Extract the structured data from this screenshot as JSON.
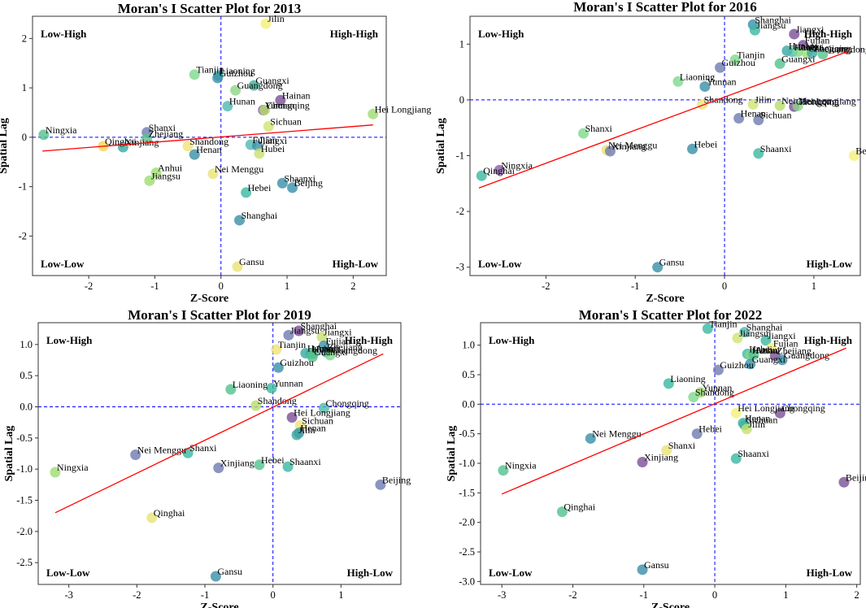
{
  "colors": {
    "refline": "#0000ff",
    "regression": "#ff0000"
  },
  "chart_data": [
    {
      "type": "scatter",
      "title": "Moran's I Scatter Plot for 2013",
      "xlabel": "Z-Score",
      "ylabel": "Spatial Lag",
      "xlim": [
        -2.85,
        2.5
      ],
      "ylim": [
        -2.8,
        2.45
      ],
      "xticks": [
        "-2",
        "-1",
        "0",
        "1",
        "2"
      ],
      "xtick_values": [
        -2,
        -1,
        0,
        1,
        2
      ],
      "yticks": [
        "-2",
        "-1",
        "0",
        "1",
        "2"
      ],
      "ytick_values": [
        -2,
        -1,
        0,
        1,
        2
      ],
      "quadrants": {
        "top_left": "Low-High",
        "top_right": "High-High",
        "bottom_left": "Low-Low",
        "bottom_right": "High-Low"
      },
      "regression": {
        "x": [
          -2.7,
          2.3
        ],
        "y": [
          -0.28,
          0.25
        ]
      },
      "points": [
        {
          "label": "Jilin",
          "x": 0.68,
          "y": 2.3,
          "color": "#f4f07a"
        },
        {
          "label": "Tianjin",
          "x": -0.4,
          "y": 1.27,
          "color": "#7ed88c"
        },
        {
          "label": "Liaoning",
          "x": -0.04,
          "y": 1.25,
          "color": "#3ab8a0"
        },
        {
          "label": "Guizhou",
          "x": -0.05,
          "y": 1.2,
          "color": "#3a8ea8"
        },
        {
          "label": "Guangxi",
          "x": 0.5,
          "y": 1.05,
          "color": "#3bb29a"
        },
        {
          "label": "Guangdong",
          "x": 0.22,
          "y": 0.95,
          "color": "#8fd488"
        },
        {
          "label": "Hainan",
          "x": 0.9,
          "y": 0.75,
          "color": "#7a4f96"
        },
        {
          "label": "Hunan",
          "x": 0.1,
          "y": 0.63,
          "color": "#50b8b0"
        },
        {
          "label": "Yunnan",
          "x": 0.64,
          "y": 0.55,
          "color": "#7e58a0"
        },
        {
          "label": "Chongqing",
          "x": 0.66,
          "y": 0.55,
          "color": "#b6dc6a"
        },
        {
          "label": "Hei Longjiang",
          "x": 2.3,
          "y": 0.47,
          "color": "#9edc72"
        },
        {
          "label": "Sichuan",
          "x": 0.72,
          "y": 0.22,
          "color": "#d0e470"
        },
        {
          "label": "Ningxia",
          "x": -2.68,
          "y": 0.05,
          "color": "#52c28c"
        },
        {
          "label": "Shanxi",
          "x": -1.12,
          "y": 0.1,
          "color": "#6f7bb0"
        },
        {
          "label": "Zhejiang",
          "x": -1.12,
          "y": -0.03,
          "color": "#5ac08e"
        },
        {
          "label": "Qinghai",
          "x": -1.78,
          "y": -0.18,
          "color": "#f4d650"
        },
        {
          "label": "Xinjiang",
          "x": -1.48,
          "y": -0.2,
          "color": "#3aa8a0"
        },
        {
          "label": "Shandong",
          "x": -0.5,
          "y": -0.18,
          "color": "#f0e278"
        },
        {
          "label": "Fujian",
          "x": 0.45,
          "y": -0.15,
          "color": "#50b8b0"
        },
        {
          "label": "Jiangxi",
          "x": 0.55,
          "y": -0.17,
          "color": "#3a8ea8"
        },
        {
          "label": "Henan",
          "x": -0.4,
          "y": -0.35,
          "color": "#3a8ea8"
        },
        {
          "label": "Hubei",
          "x": 0.58,
          "y": -0.33,
          "color": "#c8e070"
        },
        {
          "label": "Anhui",
          "x": -0.98,
          "y": -0.72,
          "color": "#9edc72"
        },
        {
          "label": "Jiangsu",
          "x": -1.08,
          "y": -0.88,
          "color": "#9edc72"
        },
        {
          "label": "Nei Menggu",
          "x": -0.12,
          "y": -0.74,
          "color": "#e8e476"
        },
        {
          "label": "Shaanxi",
          "x": 0.93,
          "y": -0.93,
          "color": "#3a8ea8"
        },
        {
          "label": "Beijing",
          "x": 1.08,
          "y": -1.02,
          "color": "#3a8ea8"
        },
        {
          "label": "Hebei",
          "x": 0.38,
          "y": -1.12,
          "color": "#3ab8a0"
        },
        {
          "label": "Shanghai",
          "x": 0.28,
          "y": -1.68,
          "color": "#3a8ea8"
        },
        {
          "label": "Gansu",
          "x": 0.25,
          "y": -2.62,
          "color": "#e8e476"
        }
      ]
    },
    {
      "type": "scatter",
      "title": "Moran's I Scatter Plot for 2016",
      "xlabel": "Z-Score",
      "ylabel": "Spatial Lag",
      "xlim": [
        -2.85,
        1.52
      ],
      "ylim": [
        -3.15,
        1.5
      ],
      "xticks": [
        "-2",
        "-1",
        "0",
        "1"
      ],
      "xtick_values": [
        -2,
        -1,
        0,
        1
      ],
      "yticks": [
        "-3",
        "-2",
        "-1",
        "0",
        "1"
      ],
      "ytick_values": [
        -3,
        -2,
        -1,
        0,
        1
      ],
      "quadrants": {
        "top_left": "Low-High",
        "top_right": "High-High",
        "bottom_left": "Low-Low",
        "bottom_right": "High-Low"
      },
      "regression": {
        "x": [
          -2.75,
          1.4
        ],
        "y": [
          -1.58,
          0.88
        ]
      },
      "points": [
        {
          "label": "Shanghai",
          "x": 0.32,
          "y": 1.35,
          "color": "#3a8ea8"
        },
        {
          "label": "Jiangsu",
          "x": 0.34,
          "y": 1.25,
          "color": "#3ab8a0"
        },
        {
          "label": "Jiangxi",
          "x": 0.78,
          "y": 1.18,
          "color": "#7a4f96"
        },
        {
          "label": "Fujian",
          "x": 0.88,
          "y": 0.98,
          "color": "#7a4f96"
        },
        {
          "label": "Hunan",
          "x": 0.7,
          "y": 0.88,
          "color": "#3aa8a0"
        },
        {
          "label": "Hubei",
          "x": 0.76,
          "y": 0.86,
          "color": "#50b8b0"
        },
        {
          "label": "Anhui",
          "x": 0.82,
          "y": 0.86,
          "color": "#7ed88c"
        },
        {
          "label": "Chongqing",
          "x": 0.92,
          "y": 0.84,
          "color": "#9edc72"
        },
        {
          "label": "Zhejiang",
          "x": 0.98,
          "y": 0.84,
          "color": "#3aa8a0"
        },
        {
          "label": "Guangdong",
          "x": 1.1,
          "y": 0.82,
          "color": "#5ac08e"
        },
        {
          "label": "Tianjin",
          "x": 0.12,
          "y": 0.72,
          "color": "#7ed88c"
        },
        {
          "label": "Guangxi",
          "x": 0.62,
          "y": 0.65,
          "color": "#52c28c"
        },
        {
          "label": "Guizhou",
          "x": -0.05,
          "y": 0.58,
          "color": "#6f7bb0"
        },
        {
          "label": "Liaoning",
          "x": -0.52,
          "y": 0.33,
          "color": "#7ed88c"
        },
        {
          "label": "Yunnan",
          "x": -0.22,
          "y": 0.24,
          "color": "#3a8ea8"
        },
        {
          "label": "Shandong",
          "x": -0.25,
          "y": -0.08,
          "color": "#f0e278"
        },
        {
          "label": "Jilin",
          "x": 0.32,
          "y": -0.08,
          "color": "#d0e470"
        },
        {
          "label": "Nei Menggu",
          "x": 0.62,
          "y": -0.1,
          "color": "#b6dc6a"
        },
        {
          "label": "Chongqing",
          "x": 0.78,
          "y": -0.12,
          "color": "#7a4f96"
        },
        {
          "label": "Hei Longjiang",
          "x": 0.82,
          "y": -0.11,
          "color": "#8fd488"
        },
        {
          "label": "Henan",
          "x": 0.16,
          "y": -0.33,
          "color": "#6f7bb0"
        },
        {
          "label": "Sichuan",
          "x": 0.38,
          "y": -0.36,
          "color": "#6f7bb0"
        },
        {
          "label": "Shanxi",
          "x": -1.58,
          "y": -0.6,
          "color": "#7ed88c"
        },
        {
          "label": "Nei Menggu",
          "x": -1.32,
          "y": -0.9,
          "color": "#e8e476"
        },
        {
          "label": "Xinjiang",
          "x": -1.28,
          "y": -0.92,
          "color": "#6f7bb0"
        },
        {
          "label": "Hebei",
          "x": -0.36,
          "y": -0.88,
          "color": "#3a8ea8"
        },
        {
          "label": "Shaanxi",
          "x": 0.38,
          "y": -0.96,
          "color": "#3ab8a0"
        },
        {
          "label": "Beijing",
          "x": 1.45,
          "y": -1.0,
          "color": "#f4f07a"
        },
        {
          "label": "Ningxia",
          "x": -2.52,
          "y": -1.26,
          "color": "#8a5ea6"
        },
        {
          "label": "Qinghai",
          "x": -2.72,
          "y": -1.36,
          "color": "#3ab8a0"
        },
        {
          "label": "Gansu",
          "x": -0.75,
          "y": -3.0,
          "color": "#3a8ea8"
        }
      ]
    },
    {
      "type": "scatter",
      "title": "Moran's I Scatter Plot for 2019",
      "xlabel": "Z-Score",
      "ylabel": "Spatial Lag",
      "xlim": [
        -3.45,
        1.88
      ],
      "ylim": [
        -2.85,
        1.35
      ],
      "xticks": [
        "-3",
        "-2",
        "-1",
        "0",
        "1"
      ],
      "xtick_values": [
        -3,
        -2,
        -1,
        0,
        1
      ],
      "yticks": [
        "-2.5",
        "-2.0",
        "-1.5",
        "-1.0",
        "-0.5",
        "0.0",
        "0.5",
        "1.0"
      ],
      "ytick_values": [
        -2.5,
        -2.0,
        -1.5,
        -1.0,
        -0.5,
        0.0,
        0.5,
        1.0
      ],
      "quadrants": {
        "top_left": "Low-High",
        "top_right": "High-High",
        "bottom_left": "Low-Low",
        "bottom_right": "High-Low"
      },
      "regression": {
        "x": [
          -3.2,
          1.62
        ],
        "y": [
          -1.7,
          0.85
        ]
      },
      "points": [
        {
          "label": "Shanghai",
          "x": 0.38,
          "y": 1.22,
          "color": "#7a4f96"
        },
        {
          "label": "Jiangsu",
          "x": 0.23,
          "y": 1.15,
          "color": "#6f7bb0"
        },
        {
          "label": "Jiangxi",
          "x": 0.72,
          "y": 1.12,
          "color": "#c8e070"
        },
        {
          "label": "Fujian",
          "x": 0.75,
          "y": 0.98,
          "color": "#3a8ea8"
        },
        {
          "label": "Tianjin",
          "x": 0.05,
          "y": 0.92,
          "color": "#f0e278"
        },
        {
          "label": "Hunan",
          "x": 0.48,
          "y": 0.86,
          "color": "#3aa8a0"
        },
        {
          "label": "Hubei",
          "x": 0.55,
          "y": 0.85,
          "color": "#3ab8a0"
        },
        {
          "label": "Anhui",
          "x": 0.6,
          "y": 0.86,
          "color": "#52c28c"
        },
        {
          "label": "Zhejiang",
          "x": 0.78,
          "y": 0.88,
          "color": "#3aa8a0"
        },
        {
          "label": "Guangdong",
          "x": 0.84,
          "y": 0.83,
          "color": "#7ed88c"
        },
        {
          "label": "Guangxi",
          "x": 0.58,
          "y": 0.8,
          "color": "#52c28c"
        },
        {
          "label": "Guizhou",
          "x": 0.08,
          "y": 0.63,
          "color": "#3a8ea8"
        },
        {
          "label": "Liaoning",
          "x": -0.62,
          "y": 0.28,
          "color": "#52c28c"
        },
        {
          "label": "Yunnan",
          "x": -0.02,
          "y": 0.3,
          "color": "#3ab8a0"
        },
        {
          "label": "Shandong",
          "x": -0.25,
          "y": 0.02,
          "color": "#b6dc6a"
        },
        {
          "label": "Chongqing",
          "x": 0.75,
          "y": -0.02,
          "color": "#50b8b0"
        },
        {
          "label": "Hei Longjiang",
          "x": 0.28,
          "y": -0.17,
          "color": "#7a4f96"
        },
        {
          "label": "Sichuan",
          "x": 0.4,
          "y": -0.3,
          "color": "#f0e278"
        },
        {
          "label": "Henan",
          "x": 0.38,
          "y": -0.42,
          "color": "#3a8ea8"
        },
        {
          "label": "Jilin",
          "x": 0.35,
          "y": -0.45,
          "color": "#3aa8a0"
        },
        {
          "label": "Nei Menggu",
          "x": -2.02,
          "y": -0.77,
          "color": "#6f7bb0"
        },
        {
          "label": "Shanxi",
          "x": -1.25,
          "y": -0.74,
          "color": "#3ab8a0"
        },
        {
          "label": "Xinjiang",
          "x": -0.8,
          "y": -0.98,
          "color": "#6f7bb0"
        },
        {
          "label": "Hebei",
          "x": -0.2,
          "y": -0.93,
          "color": "#52c28c"
        },
        {
          "label": "Shaanxi",
          "x": 0.22,
          "y": -0.96,
          "color": "#3ab8a0"
        },
        {
          "label": "Ningxia",
          "x": -3.2,
          "y": -1.05,
          "color": "#9edc72"
        },
        {
          "label": "Beijing",
          "x": 1.58,
          "y": -1.25,
          "color": "#6f7bb0"
        },
        {
          "label": "Qinghai",
          "x": -1.78,
          "y": -1.78,
          "color": "#e8e476"
        },
        {
          "label": "Gansu",
          "x": -0.84,
          "y": -2.72,
          "color": "#3a8ea8"
        }
      ]
    },
    {
      "type": "scatter",
      "title": "Moran's I Scatter Plot for 2022",
      "xlabel": "Z-Score",
      "ylabel": "Spatial Lag",
      "xlim": [
        -3.3,
        2.05
      ],
      "ylim": [
        -3.05,
        1.38
      ],
      "xticks": [
        "-3",
        "-2",
        "-1",
        "0",
        "1",
        "2"
      ],
      "xtick_values": [
        -3,
        -2,
        -1,
        0,
        1,
        2
      ],
      "yticks": [
        "-3.0",
        "-2.5",
        "-2.0",
        "-1.5",
        "-1.0",
        "-0.5",
        "0.0",
        "0.5",
        "1.0"
      ],
      "ytick_values": [
        -3.0,
        -2.5,
        -2.0,
        -1.5,
        -1.0,
        -0.5,
        0.0,
        0.5,
        1.0
      ],
      "quadrants": {
        "top_left": "Low-High",
        "top_right": "High-High",
        "bottom_left": "Low-Low",
        "bottom_right": "High-Low"
      },
      "regression": {
        "x": [
          -3.0,
          1.85
        ],
        "y": [
          -1.52,
          0.95
        ]
      },
      "points": [
        {
          "label": "Tianjin",
          "x": -0.1,
          "y": 1.28,
          "color": "#3ab8a0"
        },
        {
          "label": "Shanghai",
          "x": 0.42,
          "y": 1.22,
          "color": "#50b8b0"
        },
        {
          "label": "Jiangsu",
          "x": 0.32,
          "y": 1.12,
          "color": "#d0e470"
        },
        {
          "label": "Jiangxi",
          "x": 0.72,
          "y": 1.08,
          "color": "#3ab8a0"
        },
        {
          "label": "Fujian",
          "x": 0.8,
          "y": 0.95,
          "color": "#f4f07a"
        },
        {
          "label": "Hebei",
          "x": 0.46,
          "y": 0.85,
          "color": "#3ab8a0"
        },
        {
          "label": "Hunan",
          "x": 0.5,
          "y": 0.83,
          "color": "#7ed88c"
        },
        {
          "label": "Anhui",
          "x": 0.55,
          "y": 0.84,
          "color": "#52c28c"
        },
        {
          "label": "Zhejiang",
          "x": 0.85,
          "y": 0.82,
          "color": "#7a4f96"
        },
        {
          "label": "Guangdong",
          "x": 0.95,
          "y": 0.75,
          "color": "#3a8ea8"
        },
        {
          "label": "Guangxi",
          "x": 0.5,
          "y": 0.68,
          "color": "#3a8ea8"
        },
        {
          "label": "Guizhou",
          "x": 0.05,
          "y": 0.58,
          "color": "#6f7bb0"
        },
        {
          "label": "Liaoning",
          "x": -0.65,
          "y": 0.35,
          "color": "#3ab8a0"
        },
        {
          "label": "Yunnan",
          "x": -0.2,
          "y": 0.2,
          "color": "#9edc72"
        },
        {
          "label": "Shandong",
          "x": -0.3,
          "y": 0.12,
          "color": "#7ed88c"
        },
        {
          "label": "Hei Longjiang",
          "x": 0.3,
          "y": -0.15,
          "color": "#f4f07a"
        },
        {
          "label": "Chongqing",
          "x": 0.92,
          "y": -0.15,
          "color": "#7a4f96"
        },
        {
          "label": "Henan",
          "x": 0.4,
          "y": -0.32,
          "color": "#3aa8a0"
        },
        {
          "label": "Sichuan",
          "x": 0.42,
          "y": -0.35,
          "color": "#3ab8a0"
        },
        {
          "label": "Jilin",
          "x": 0.45,
          "y": -0.42,
          "color": "#c8e070"
        },
        {
          "label": "Nei Menggu",
          "x": -1.75,
          "y": -0.58,
          "color": "#3a8ea8"
        },
        {
          "label": "Hebei",
          "x": -0.25,
          "y": -0.5,
          "color": "#6f7bb0"
        },
        {
          "label": "Shanxi",
          "x": -0.68,
          "y": -0.78,
          "color": "#e8e476"
        },
        {
          "label": "Xinjiang",
          "x": -1.02,
          "y": -0.98,
          "color": "#7a4f96"
        },
        {
          "label": "Shaanxi",
          "x": 0.3,
          "y": -0.92,
          "color": "#3ab8a0"
        },
        {
          "label": "Ningxia",
          "x": -2.98,
          "y": -1.12,
          "color": "#52c28c"
        },
        {
          "label": "Beijing",
          "x": 1.82,
          "y": -1.32,
          "color": "#7a4f96"
        },
        {
          "label": "Qinghai",
          "x": -2.15,
          "y": -1.82,
          "color": "#52c28c"
        },
        {
          "label": "Gansu",
          "x": -1.02,
          "y": -2.8,
          "color": "#3a8ea8"
        }
      ]
    }
  ]
}
